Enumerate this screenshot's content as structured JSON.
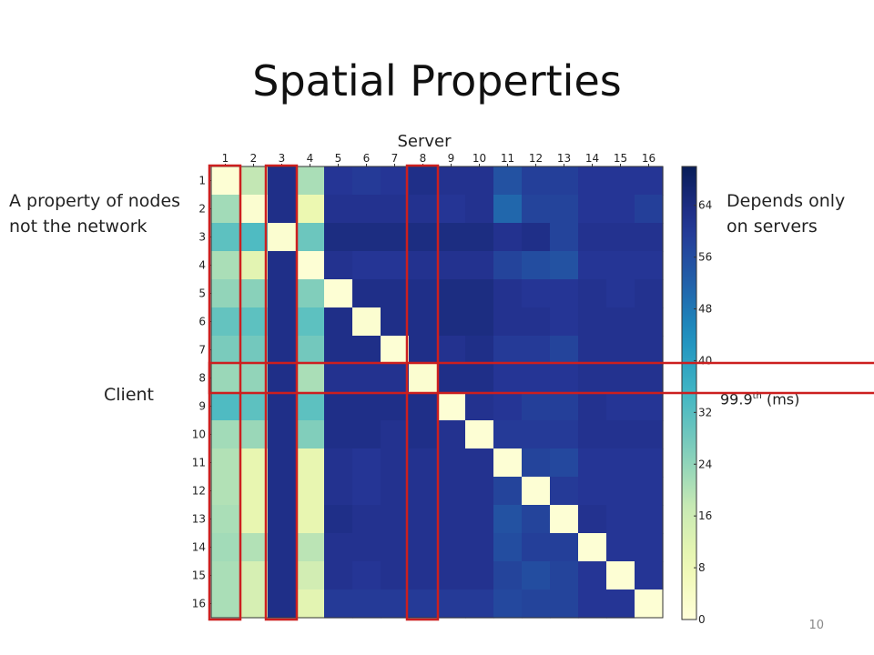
{
  "slide": {
    "title": "Spatial Properties",
    "page_number": "10"
  },
  "annotations": {
    "left_line1": "A property of nodes",
    "left_line2": "not the network",
    "right_line1": "Depends only",
    "right_line2": "on servers",
    "client_label": "Client",
    "metric_base": "99.9",
    "metric_sup": "th",
    "metric_unit": " (ms)"
  },
  "colors": {
    "highlight_box": "#cc1f1f"
  },
  "chart_data": {
    "type": "heatmap",
    "title": "",
    "xlabel": "Server",
    "ylabel": "",
    "x_tick_labels": [
      "1",
      "2",
      "3",
      "4",
      "5",
      "6",
      "7",
      "8",
      "9",
      "10",
      "11",
      "12",
      "13",
      "14",
      "15",
      "16"
    ],
    "y_tick_labels": [
      "1",
      "2",
      "3",
      "4",
      "5",
      "6",
      "7",
      "8",
      "9",
      "10",
      "11",
      "12",
      "13",
      "14",
      "15",
      "16"
    ],
    "colorbar": {
      "min": 0,
      "max": 70,
      "ticks": [
        0,
        8,
        16,
        24,
        32,
        40,
        48,
        56,
        64
      ],
      "colormap": "YlGnBu"
    },
    "values": [
      [
        1,
        18,
        63,
        21,
        61,
        60,
        61,
        63,
        62,
        62,
        55,
        59,
        59,
        61,
        61,
        61
      ],
      [
        22,
        2,
        63,
        9,
        62,
        62,
        62,
        62,
        61,
        62,
        51,
        58,
        58,
        61,
        61,
        59
      ],
      [
        31,
        33,
        2,
        29,
        64,
        64,
        64,
        64,
        64,
        64,
        62,
        63,
        58,
        62,
        62,
        62
      ],
      [
        21,
        11,
        63,
        1,
        62,
        61,
        61,
        62,
        62,
        62,
        58,
        56,
        55,
        61,
        61,
        61
      ],
      [
        24,
        25,
        63,
        26,
        1,
        63,
        63,
        63,
        64,
        64,
        62,
        61,
        61,
        62,
        61,
        62
      ],
      [
        30,
        31,
        63,
        31,
        63,
        2,
        63,
        63,
        64,
        64,
        62,
        62,
        61,
        62,
        62,
        62
      ],
      [
        27,
        28,
        63,
        28,
        63,
        63,
        1,
        63,
        62,
        63,
        60,
        60,
        58,
        62,
        62,
        62
      ],
      [
        23,
        24,
        63,
        21,
        62,
        62,
        62,
        2,
        63,
        63,
        61,
        61,
        61,
        62,
        62,
        62
      ],
      [
        33,
        31,
        63,
        31,
        63,
        63,
        63,
        63,
        1,
        62,
        61,
        59,
        59,
        62,
        61,
        61
      ],
      [
        22,
        23,
        63,
        26,
        63,
        63,
        62,
        63,
        62,
        1,
        60,
        60,
        60,
        62,
        62,
        62
      ],
      [
        20,
        10,
        63,
        10,
        62,
        61,
        62,
        62,
        62,
        62,
        1,
        58,
        57,
        61,
        61,
        61
      ],
      [
        20,
        10,
        63,
        10,
        62,
        61,
        62,
        62,
        62,
        62,
        58,
        1,
        60,
        61,
        61,
        61
      ],
      [
        21,
        10,
        63,
        10,
        63,
        62,
        62,
        62,
        62,
        62,
        55,
        58,
        1,
        62,
        61,
        61
      ],
      [
        22,
        20,
        63,
        19,
        62,
        62,
        62,
        62,
        62,
        62,
        56,
        59,
        59,
        1,
        61,
        61
      ],
      [
        21,
        14,
        63,
        15,
        62,
        61,
        62,
        62,
        62,
        62,
        58,
        56,
        58,
        61,
        1,
        61
      ],
      [
        21,
        14,
        63,
        11,
        60,
        60,
        60,
        60,
        60,
        60,
        57,
        58,
        58,
        61,
        61,
        1
      ]
    ],
    "highlights": {
      "columns": [
        1,
        3,
        8
      ],
      "rows": [
        8
      ]
    },
    "grid": false
  }
}
